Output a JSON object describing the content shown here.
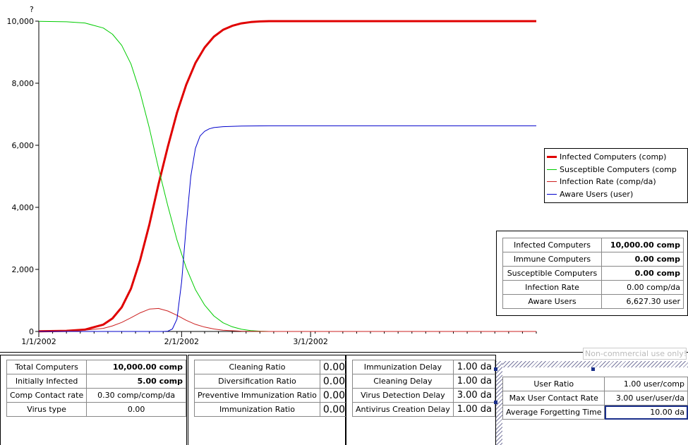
{
  "chart_data": {
    "type": "line",
    "title": "?",
    "xlabel": "",
    "ylabel": "",
    "x_date_axis": true,
    "x_start": "1/1/2002",
    "x_end_days": 108,
    "ylim": [
      0,
      10000
    ],
    "y_ticks": [
      "0",
      "2,000",
      "4,000",
      "6,000",
      "8,000",
      "10,000"
    ],
    "y_tick_values": [
      0,
      2000,
      4000,
      6000,
      8000,
      10000
    ],
    "x_ticks": [
      "1/1/2002",
      "2/1/2002",
      "3/1/2002"
    ],
    "x_tick_days": [
      0,
      31,
      59
    ],
    "grid": false,
    "legend_position": "right",
    "series": [
      {
        "name": "Infected Computers (comp)",
        "color": "#e00000",
        "width": 3,
        "x": [
          0,
          6,
          10,
          14,
          16,
          18,
          20,
          22,
          24,
          26,
          28,
          30,
          32,
          34,
          36,
          38,
          40,
          42,
          44,
          46,
          48,
          50,
          60,
          108
        ],
        "y": [
          5,
          20,
          60,
          220,
          420,
          780,
          1380,
          2300,
          3450,
          4750,
          5950,
          7050,
          7950,
          8650,
          9150,
          9500,
          9720,
          9850,
          9930,
          9970,
          9990,
          10000,
          10000,
          10000
        ]
      },
      {
        "name": "Susceptible Computers (comp",
        "color": "#00cc00",
        "width": 1,
        "x": [
          0,
          6,
          10,
          14,
          16,
          18,
          20,
          22,
          24,
          26,
          28,
          30,
          32,
          34,
          36,
          38,
          40,
          42,
          44,
          46,
          48,
          50,
          60,
          108
        ],
        "y": [
          9995,
          9980,
          9940,
          9780,
          9580,
          9220,
          8620,
          7700,
          6550,
          5250,
          4050,
          2950,
          2050,
          1350,
          850,
          500,
          280,
          150,
          70,
          30,
          10,
          0,
          0,
          0
        ]
      },
      {
        "name": "Infection Rate (comp/da)",
        "color": "#cc2020",
        "width": 1,
        "x": [
          0,
          10,
          14,
          16,
          18,
          20,
          22,
          24,
          26,
          28,
          30,
          32,
          34,
          36,
          38,
          40,
          44,
          50,
          60,
          108
        ],
        "y": [
          2,
          40,
          100,
          180,
          290,
          440,
          600,
          720,
          740,
          660,
          520,
          360,
          230,
          140,
          80,
          40,
          10,
          0,
          0,
          0
        ]
      },
      {
        "name": "Aware Users (user)",
        "color": "#0000cc",
        "width": 1,
        "x": [
          0,
          27,
          28,
          29,
          30,
          31,
          32,
          33,
          34,
          35,
          36,
          37,
          38,
          40,
          44,
          50,
          60,
          108
        ],
        "y": [
          0,
          0,
          10,
          80,
          400,
          1600,
          3400,
          5000,
          5900,
          6300,
          6450,
          6530,
          6570,
          6600,
          6620,
          6627,
          6627,
          6627
        ]
      }
    ]
  },
  "legend": {
    "items": [
      {
        "label": "Infected Computers (comp)",
        "color": "#e00000",
        "width": 3
      },
      {
        "label": "Susceptible Computers (comp",
        "color": "#00cc00",
        "width": 1
      },
      {
        "label": "Infection Rate (comp/da)",
        "color": "#cc2020",
        "width": 1
      },
      {
        "label": "Aware Users (user)",
        "color": "#0000cc",
        "width": 1
      }
    ]
  },
  "readout": {
    "rows": [
      {
        "label": "Infected Computers",
        "value": "10,000.00 comp"
      },
      {
        "label": "Immune Computers",
        "value": "0.00 comp"
      },
      {
        "label": "Susceptible Computers",
        "value": "0.00 comp"
      },
      {
        "label": "Infection Rate",
        "value": "0.00 comp/da"
      },
      {
        "label": "Aware Users",
        "value": "6,627.30 user"
      }
    ]
  },
  "watermark": "Non-commercial use only!",
  "panel1": {
    "rows": [
      {
        "label": "Total Computers",
        "value": "10,000.00 comp"
      },
      {
        "label": "Initially Infected",
        "value": "5.00 comp"
      },
      {
        "label": "Comp Contact rate",
        "value": "0.30 comp/comp/da"
      },
      {
        "label": "Virus type",
        "value": "0.00"
      }
    ]
  },
  "panel2": {
    "rows": [
      {
        "label": "Cleaning Ratio",
        "value": "0.00"
      },
      {
        "label": "Diversification Ratio",
        "value": "0.00"
      },
      {
        "label": "Preventive Immunization Ratio",
        "value": "0.00"
      },
      {
        "label": "Immunization Ratio",
        "value": "0.00"
      }
    ]
  },
  "panel3": {
    "rows": [
      {
        "label": "Immunization Delay",
        "value": "1.00 da"
      },
      {
        "label": "Cleaning Delay",
        "value": "1.00 da"
      },
      {
        "label": "Virus Detection Delay",
        "value": "3.00 da"
      },
      {
        "label": "Antivirus Creation Delay",
        "value": "1.00 da"
      }
    ]
  },
  "panel4": {
    "rows": [
      {
        "label": "User Ratio",
        "value": "1.00 user/comp"
      },
      {
        "label": "Max User Contact Rate",
        "value": "3.00 user/user/da"
      },
      {
        "label": "Average Forgetting Time",
        "value": "10.00 da"
      }
    ]
  }
}
